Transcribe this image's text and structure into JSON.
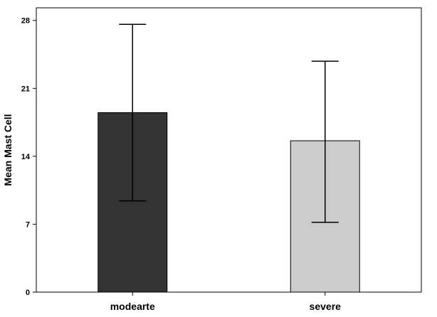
{
  "chart_data": {
    "type": "bar",
    "categories": [
      "modearte",
      "severe"
    ],
    "values": [
      18.5,
      15.6
    ],
    "error_bars": [
      {
        "low": 9.4,
        "high": 27.6
      },
      {
        "low": 7.2,
        "high": 23.8
      }
    ],
    "bar_colors": [
      "#333333",
      "#cccccc"
    ],
    "ylabel": "Mean Mast Cell",
    "xlabel": "",
    "yticks": [
      0,
      7,
      14,
      21,
      28
    ],
    "ylim": [
      0,
      29.3
    ],
    "grid": false,
    "legend": "none"
  }
}
